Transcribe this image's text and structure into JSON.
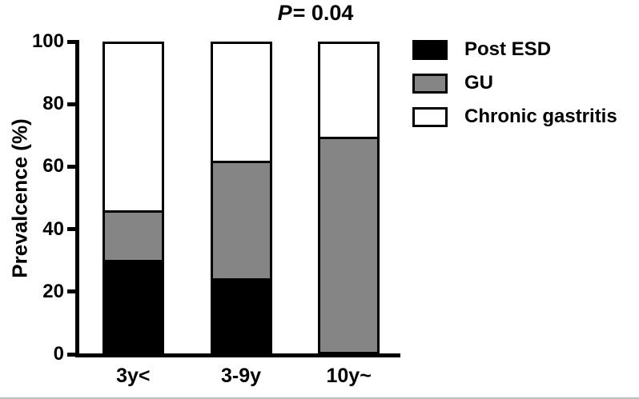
{
  "title": {
    "p_symbol": "P",
    "p_value": "= 0.04"
  },
  "chart_data": {
    "type": "bar",
    "stacked": true,
    "title": "P = 0.04",
    "categories": [
      "3y<",
      "3-9y",
      "10y~"
    ],
    "series": [
      {
        "name": "Post ESD",
        "color": "#000000",
        "values": [
          30,
          24,
          0
        ]
      },
      {
        "name": "GU",
        "color": "#858585",
        "values": [
          16,
          38,
          70
        ]
      },
      {
        "name": "Chronic gastritis",
        "color": "#ffffff",
        "values": [
          54,
          38,
          30
        ]
      }
    ],
    "ylabel": "Prevalcence (%)",
    "yticks": [
      0,
      20,
      40,
      60,
      80,
      100
    ],
    "ylim": [
      0,
      100
    ],
    "legend_position": "right",
    "grid": false
  },
  "colors": {
    "axis": "#000000",
    "background": "#ffffff"
  }
}
